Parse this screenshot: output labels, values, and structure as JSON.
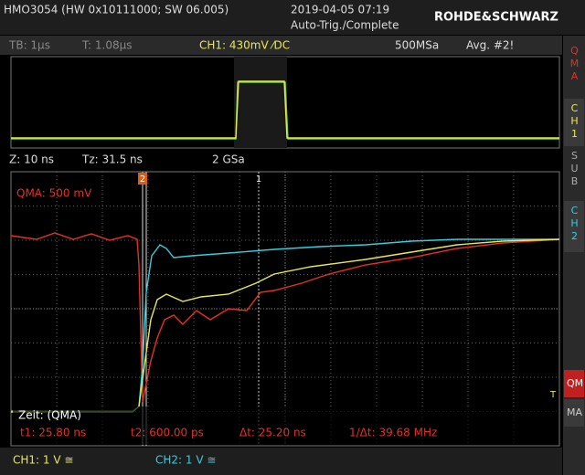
{
  "header": {
    "device": "HMO3054 (HW 0x10111000; SW 06.005)",
    "datetime": "2019-04-05 07:19",
    "status": "Auto-Trig./Complete",
    "brand": "ROHDE&SCHWARZ"
  },
  "status_bar": {
    "timebase": "TB: 1µs",
    "trigger_time": "T: 1.08µs",
    "channel": "CH1: 430mV ⁄DC",
    "sample_rate": "500MSa",
    "average": "Avg. #2!"
  },
  "zoom_bar": {
    "zoom": "Z: 10 ns",
    "zoom_time": "Tz: 31.5 ns",
    "sample_rate": "2 GSa"
  },
  "zoom_window": {
    "math_scale": "QMA: 500 mV",
    "cursor_mode": "Zeit: (QMA)",
    "t1": "t1: 25.80 ns",
    "t2": "t2: 600.00 ps",
    "delta_t": "Δt: 25.20 ns",
    "inverse_delta_t": "1/Δt: 39.68 MHz",
    "cursor1": "1",
    "cursor2": "2",
    "trigger": "T"
  },
  "bottom_bar": {
    "ch1": "CH1: 1 V ≅",
    "ch2": "CH2: 1 V ≅"
  },
  "side_menu": [
    "QMA",
    "CH1",
    "SUB",
    "CH2",
    "QM",
    "MA"
  ]
}
